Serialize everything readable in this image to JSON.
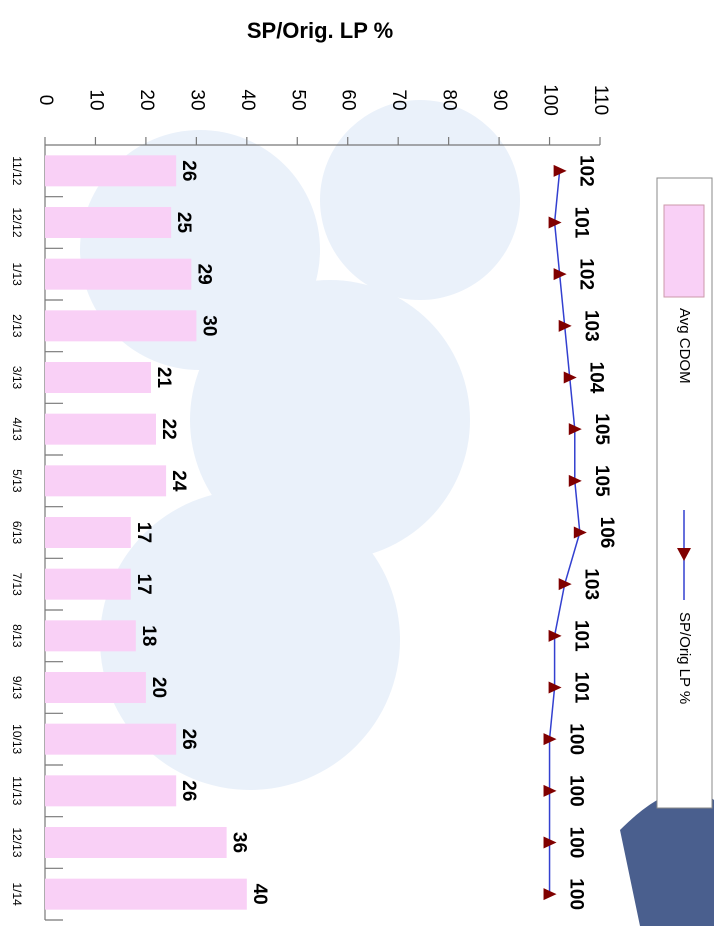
{
  "chart_data": {
    "type": "bar",
    "orientation": "horizontal",
    "title": "SP/Orig. LP %",
    "categories": [
      "11/12",
      "12/12",
      "1/13",
      "2/13",
      "3/13",
      "4/13",
      "5/13",
      "6/13",
      "7/13",
      "8/13",
      "9/13",
      "10/13",
      "11/13",
      "12/13",
      "1/14"
    ],
    "series": [
      {
        "name": "Avg CDOM",
        "type": "bar",
        "color": "#f9d0f6",
        "values": [
          26,
          25,
          29,
          30,
          21,
          22,
          24,
          17,
          17,
          18,
          20,
          26,
          26,
          36,
          40
        ]
      },
      {
        "name": "SP/Orig LP %",
        "type": "line",
        "color": "#3340d0",
        "marker_color": "#800000",
        "values": [
          102,
          101,
          102,
          103,
          104,
          105,
          105,
          106,
          103,
          101,
          101,
          100,
          100,
          100,
          100
        ]
      }
    ],
    "ylim": [
      0,
      110
    ],
    "yticks": [
      0,
      10,
      20,
      30,
      40,
      50,
      60,
      70,
      80,
      90,
      100,
      110
    ],
    "grid": false
  }
}
